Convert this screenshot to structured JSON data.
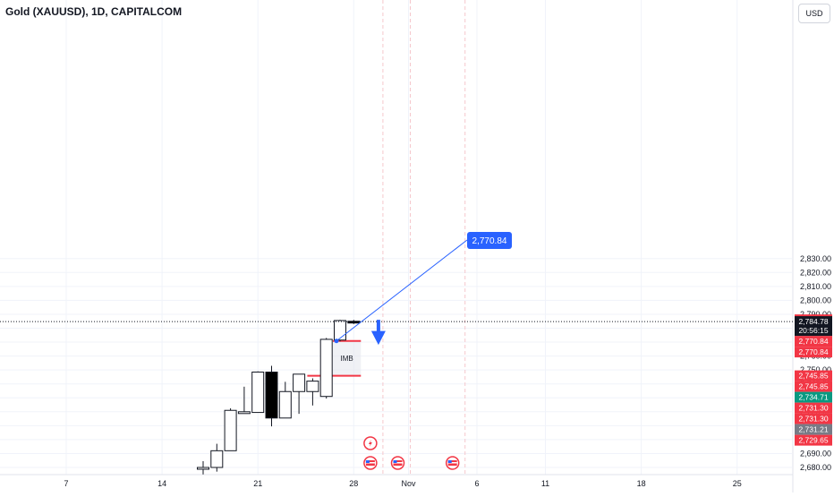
{
  "title": "Gold (XAUUSD), 1D, CAPITALCOM",
  "currency": "USD",
  "chart_data": {
    "type": "candlestick",
    "x_tick_labels": [
      {
        "label": "7",
        "day": 7
      },
      {
        "label": "14",
        "day": 14
      },
      {
        "label": "21",
        "day": 21
      },
      {
        "label": "28",
        "day": 28
      },
      {
        "label": "Nov",
        "day": 32
      },
      {
        "label": "6",
        "day": 37
      },
      {
        "label": "11",
        "day": 42
      },
      {
        "label": "18",
        "day": 49
      },
      {
        "label": "25",
        "day": 56
      }
    ],
    "y_ticks": [
      2680,
      2690,
      2700,
      2710,
      2720,
      2730,
      2740,
      2750,
      2760,
      2770,
      2780,
      2790,
      2800,
      2810,
      2820,
      2830
    ],
    "y_tick_labels": [
      "2,680.00",
      "2,690.00",
      "2,700.00",
      "2,710.00",
      "2,720.00",
      "2,730.00",
      "2,740.00",
      "2,750.00",
      "2,760.00",
      "2,770.00",
      "2,780.00",
      "2,790.00",
      "2,800.00",
      "2,810.00",
      "2,820.00",
      "2,830.00"
    ],
    "ylim": [
      2677,
      2848
    ],
    "candles": [
      {
        "day": 17,
        "open": 2680.0,
        "high": 2684.5,
        "low": 2675.0,
        "close": 2680.0
      },
      {
        "day": 18,
        "open": 2680.0,
        "high": 2697.0,
        "low": 2677.0,
        "close": 2692.0
      },
      {
        "day": 19,
        "open": 2692.0,
        "high": 2722.5,
        "low": 2692.0,
        "close": 2721.0
      },
      {
        "day": 20,
        "open": 2720.0,
        "high": 2738.0,
        "low": 2719.0,
        "close": 2720.0
      },
      {
        "day": 21,
        "open": 2719.5,
        "high": 2749.0,
        "low": 2719.5,
        "close": 2748.5
      },
      {
        "day": 22,
        "open": 2748.5,
        "high": 2753.0,
        "low": 2709.5,
        "close": 2715.5
      },
      {
        "day": 23,
        "open": 2715.5,
        "high": 2741.5,
        "low": 2715.5,
        "close": 2734.5
      },
      {
        "day": 24,
        "open": 2734.5,
        "high": 2747.0,
        "low": 2718.5,
        "close": 2747.0
      },
      {
        "day": 25,
        "open": 2734.5,
        "high": 2744.0,
        "low": 2724.5,
        "close": 2742.0
      },
      {
        "day": 26,
        "open": 2731.0,
        "high": 2773.0,
        "low": 2729.5,
        "close": 2772.0
      },
      {
        "day": 27,
        "open": 2771.5,
        "high": 2786.0,
        "low": 2770.5,
        "close": 2785.5
      },
      {
        "day": 28,
        "open": 2785.0,
        "high": 2786.0,
        "low": 2783.0,
        "close": 2784.0
      }
    ],
    "current_price": 2784.78,
    "current_price_label": "2,784.78",
    "countdown": "20:56:15",
    "imbalance_zone": {
      "label": "IMB",
      "top": 2770.84,
      "bottom": 2745.85
    },
    "arrow_callout": {
      "label": "2,770.84",
      "value": 2770.84
    },
    "axis_labels": [
      {
        "text": "2,786.03",
        "value": 2786.03,
        "color": "#f23645"
      },
      {
        "text": "2,786.03",
        "value": 2786.03,
        "color": "#f23645"
      },
      {
        "text": "2,770.84",
        "value": 2770.84,
        "color": "#f23645"
      },
      {
        "text": "2,770.84",
        "value": 2770.84,
        "color": "#f23645"
      },
      {
        "text": "2,745.85",
        "value": 2745.85,
        "color": "#f23645"
      },
      {
        "text": "2,745.85",
        "value": 2745.85,
        "color": "#f23645"
      },
      {
        "text": "2,734.71",
        "value": 2734.71,
        "color": "#089981"
      },
      {
        "text": "2,731.30",
        "value": 2731.3,
        "color": "#f23645"
      },
      {
        "text": "2,731.30",
        "value": 2731.3,
        "color": "#f23645"
      },
      {
        "text": "2,731.21",
        "value": 2731.21,
        "color": "#787b86"
      },
      {
        "text": "2,729.65",
        "value": 2729.65,
        "color": "#f23645"
      }
    ],
    "event_icons": [
      {
        "kind": "lightning-icon",
        "day": 30
      },
      {
        "kind": "us-flag-icon",
        "day": 30
      },
      {
        "kind": "us-flag-icon",
        "day": 32
      },
      {
        "kind": "us-flag-icon",
        "day": 36
      }
    ],
    "colors": {
      "down": "#000000",
      "up": "#ffffff",
      "current": "#000000",
      "imbalance_line": "#f23645",
      "callout": "#2962ff"
    }
  }
}
